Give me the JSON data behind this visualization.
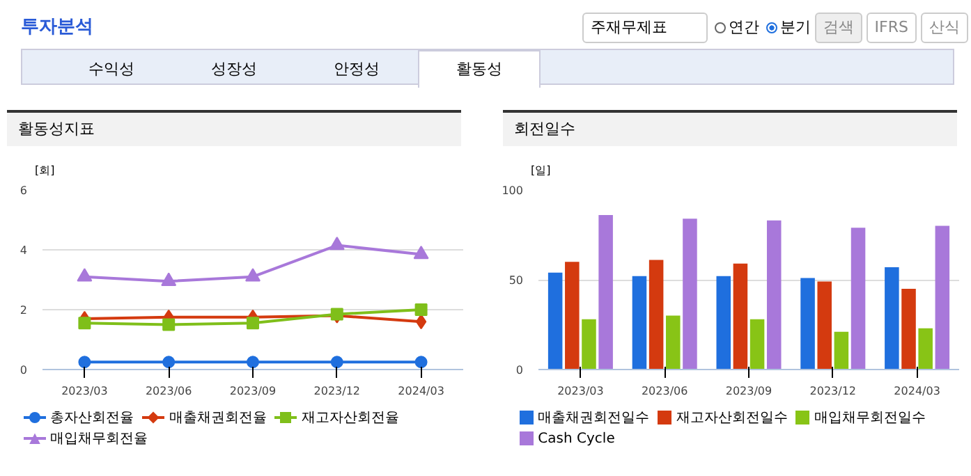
{
  "chart_data": [
    {
      "type": "line",
      "title": "활동성지표",
      "ylabel": "[회]",
      "annotations": [
        "투자분석",
        "주재무제표",
        "연간",
        "분기",
        "검색",
        "IFRS",
        "산식",
        "수익성",
        "성장성",
        "안정성",
        "활동성"
      ],
      "categories": [
        "2023/03",
        "2023/06",
        "2023/09",
        "2023/12",
        "2024/03"
      ],
      "ylim": [
        0,
        6
      ],
      "yticks": [
        0,
        2,
        4,
        6
      ],
      "grid": "y",
      "legend": "bottom",
      "series": [
        {
          "name": "총자산회전율",
          "color": "#1f6fde",
          "marker": "circle",
          "values": [
            0.25,
            0.25,
            0.25,
            0.25,
            0.25
          ]
        },
        {
          "name": "매출채권회전율",
          "color": "#d43a0f",
          "marker": "diamond",
          "values": [
            1.7,
            1.75,
            1.75,
            1.8,
            1.6
          ]
        },
        {
          "name": "재고자산회전율",
          "color": "#7fbf1a",
          "marker": "square",
          "values": [
            1.55,
            1.5,
            1.55,
            1.85,
            2.0
          ]
        },
        {
          "name": "매입채무회전율",
          "color": "#a878da",
          "marker": "triangle",
          "values": [
            3.1,
            2.95,
            3.1,
            4.15,
            3.85
          ]
        }
      ]
    },
    {
      "type": "bar",
      "title": "회전일수",
      "ylabel": "[일]",
      "categories": [
        "2023/03",
        "2023/06",
        "2023/09",
        "2023/12",
        "2024/03"
      ],
      "ylim": [
        0,
        100
      ],
      "yticks": [
        0,
        50,
        100
      ],
      "grid": "y",
      "legend": "bottom",
      "series": [
        {
          "name": "매출채권회전일수",
          "color": "#1f6fde",
          "values": [
            54,
            52,
            52,
            51,
            57
          ]
        },
        {
          "name": "재고자산회전일수",
          "color": "#d43a0f",
          "values": [
            60,
            61,
            59,
            49,
            45
          ]
        },
        {
          "name": "매입채무회전일수",
          "color": "#88c416",
          "values": [
            28,
            30,
            28,
            21,
            23
          ]
        },
        {
          "name": "Cash Cycle",
          "color": "#a878da",
          "values": [
            86,
            84,
            83,
            79,
            80
          ]
        }
      ]
    }
  ]
}
